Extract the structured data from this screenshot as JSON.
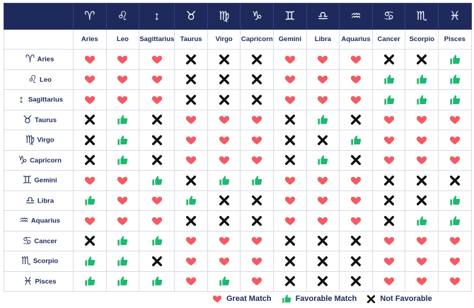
{
  "signs": [
    {
      "name": "Aries",
      "glyph": "♈"
    },
    {
      "name": "Leo",
      "glyph": "♌"
    },
    {
      "name": "Sagittarius",
      "glyph": "↕"
    },
    {
      "name": "Taurus",
      "glyph": "♉"
    },
    {
      "name": "Virgo",
      "glyph": "♍"
    },
    {
      "name": "Capricorn",
      "glyph": "♑"
    },
    {
      "name": "Gemini",
      "glyph": "♊"
    },
    {
      "name": "Libra",
      "glyph": "♎"
    },
    {
      "name": "Aquarius",
      "glyph": "♒"
    },
    {
      "name": "Cancer",
      "glyph": "♋"
    },
    {
      "name": "Scorpio",
      "glyph": "♏"
    },
    {
      "name": "Pisces",
      "glyph": "♓"
    }
  ],
  "matrix": [
    [
      "heart",
      "heart",
      "heart",
      "x",
      "x",
      "x",
      "heart",
      "heart",
      "heart",
      "x",
      "x",
      "thumb"
    ],
    [
      "heart",
      "heart",
      "heart",
      "x",
      "x",
      "x",
      "heart",
      "heart",
      "heart",
      "thumb",
      "thumb",
      "thumb"
    ],
    [
      "heart",
      "heart",
      "heart",
      "x",
      "x",
      "x",
      "heart",
      "heart",
      "heart",
      "thumb",
      "thumb",
      "thumb"
    ],
    [
      "x",
      "thumb",
      "x",
      "heart",
      "heart",
      "heart",
      "x",
      "thumb",
      "x",
      "heart",
      "heart",
      "heart"
    ],
    [
      "x",
      "thumb",
      "x",
      "heart",
      "heart",
      "heart",
      "x",
      "x",
      "thumb",
      "heart",
      "heart",
      "heart"
    ],
    [
      "x",
      "thumb",
      "x",
      "heart",
      "heart",
      "heart",
      "x",
      "thumb",
      "x",
      "heart",
      "heart",
      "heart"
    ],
    [
      "heart",
      "heart",
      "thumb",
      "x",
      "thumb",
      "thumb",
      "heart",
      "heart",
      "heart",
      "x",
      "x",
      "x"
    ],
    [
      "thumb",
      "heart",
      "heart",
      "thumb",
      "x",
      "x",
      "heart",
      "heart",
      "heart",
      "x",
      "x",
      "thumb"
    ],
    [
      "heart",
      "heart",
      "heart",
      "x",
      "x",
      "x",
      "heart",
      "heart",
      "heart",
      "x",
      "thumb",
      "thumb"
    ],
    [
      "x",
      "thumb",
      "thumb",
      "heart",
      "heart",
      "heart",
      "x",
      "x",
      "x",
      "heart",
      "heart",
      "heart"
    ],
    [
      "thumb",
      "thumb",
      "x",
      "heart",
      "heart",
      "heart",
      "x",
      "x",
      "x",
      "heart",
      "heart",
      "heart"
    ],
    [
      "thumb",
      "thumb",
      "thumb",
      "heart",
      "thumb",
      "heart",
      "x",
      "x",
      "x",
      "heart",
      "heart",
      "heart"
    ]
  ],
  "colors": {
    "heart": "#f25b63",
    "thumb": "#1fb871",
    "x": "#111111",
    "header_bg": "#1f2a5c"
  },
  "legend": {
    "heart": "Great Match",
    "thumb": "Favorable Match",
    "x": "Not Favorable"
  }
}
